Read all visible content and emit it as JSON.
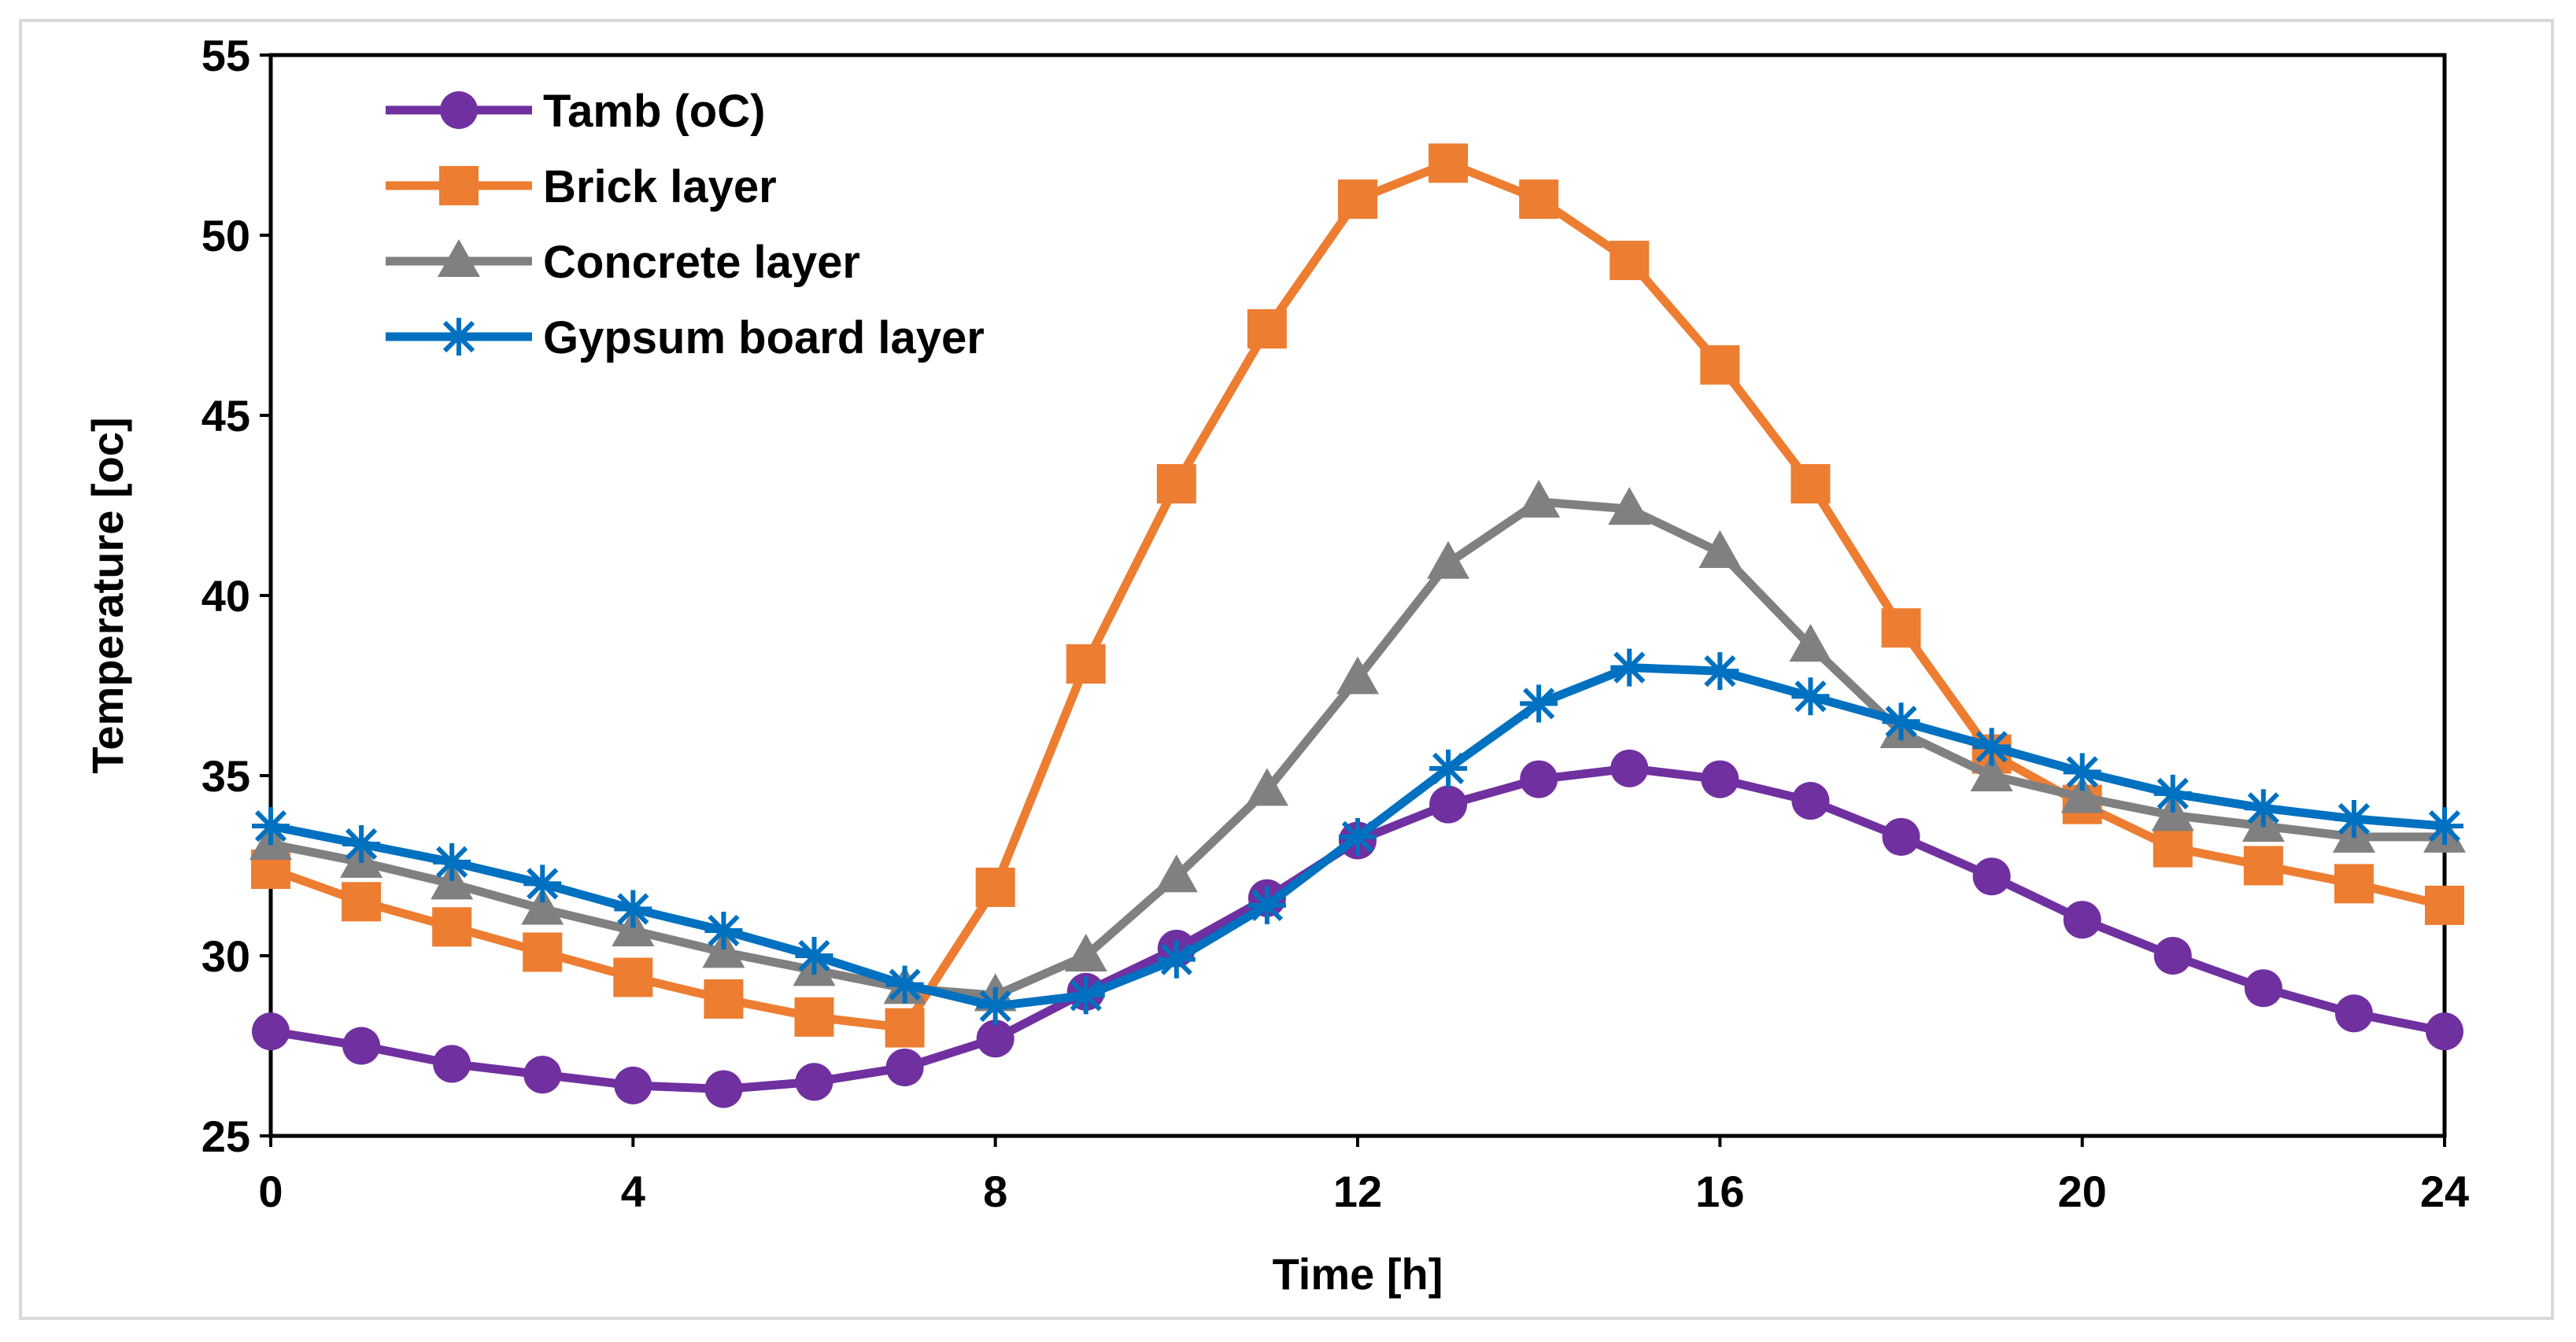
{
  "chart_data": {
    "type": "line",
    "title": "",
    "xlabel": "Time [h]",
    "ylabel": "Temperature [oc]",
    "xlim": [
      0,
      24
    ],
    "ylim": [
      25,
      55
    ],
    "xticks": [
      0,
      4,
      8,
      12,
      16,
      20,
      24
    ],
    "yticks": [
      25,
      30,
      35,
      40,
      45,
      50,
      55
    ],
    "grid": false,
    "legend": "top-left",
    "x": [
      0,
      1,
      2,
      3,
      4,
      5,
      6,
      7,
      8,
      9,
      10,
      11,
      12,
      13,
      14,
      15,
      16,
      17,
      18,
      19,
      20,
      21,
      22,
      23,
      24
    ],
    "series": [
      {
        "name": "Tamb (oC)",
        "color": "#7030a0",
        "marker": "circle",
        "values": [
          27.9,
          27.5,
          27.0,
          26.7,
          26.4,
          26.3,
          26.5,
          26.9,
          27.7,
          29.0,
          30.2,
          31.6,
          33.2,
          34.2,
          34.9,
          35.2,
          34.9,
          34.3,
          33.3,
          32.2,
          31.0,
          30.0,
          29.1,
          28.4,
          27.9
        ]
      },
      {
        "name": "Brick layer",
        "color": "#ed7d31",
        "marker": "square",
        "values": [
          32.4,
          31.5,
          30.8,
          30.1,
          29.4,
          28.8,
          28.3,
          28.0,
          31.9,
          38.1,
          43.1,
          47.4,
          51.0,
          52.0,
          51.0,
          49.3,
          46.4,
          43.1,
          39.1,
          35.6,
          34.2,
          33.0,
          32.5,
          32.0,
          31.4
        ]
      },
      {
        "name": "Concrete layer",
        "color": "#808080",
        "marker": "triangle",
        "values": [
          33.1,
          32.6,
          32.0,
          31.3,
          30.7,
          30.1,
          29.6,
          29.1,
          28.9,
          30.0,
          32.2,
          34.6,
          37.7,
          40.9,
          42.6,
          42.4,
          41.2,
          38.6,
          36.2,
          35.0,
          34.4,
          33.9,
          33.6,
          33.3,
          33.3
        ]
      },
      {
        "name": "Gypsum board layer",
        "color": "#0070c0",
        "marker": "asterisk",
        "values": [
          33.6,
          33.1,
          32.6,
          32.0,
          31.3,
          30.7,
          30.0,
          29.2,
          28.6,
          28.9,
          29.9,
          31.4,
          33.3,
          35.2,
          37.0,
          38.0,
          37.9,
          37.2,
          36.5,
          35.8,
          35.1,
          34.5,
          34.1,
          33.8,
          33.6
        ]
      }
    ]
  }
}
